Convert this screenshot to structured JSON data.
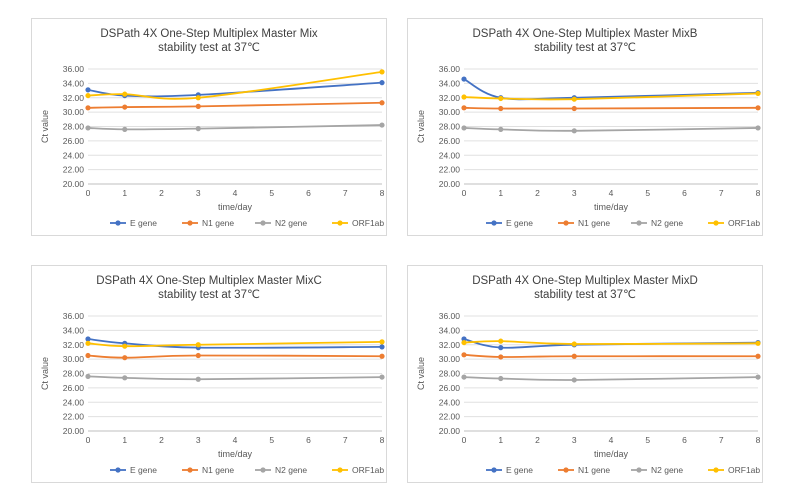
{
  "chart_data": [
    {
      "type": "line",
      "title": "DSPath 4X One-Step Multiplex Master Mix",
      "subtitle": "stability test at 37℃",
      "xlabel": "time/day",
      "ylabel": "Ct value",
      "x": [
        0,
        1,
        3,
        8
      ],
      "xlim": [
        0,
        8
      ],
      "xticks": [
        "0",
        "1",
        "2",
        "3",
        "4",
        "5",
        "6",
        "7",
        "8"
      ],
      "ylim": [
        20,
        36
      ],
      "yticks": [
        "20.00",
        "22.00",
        "24.00",
        "26.00",
        "28.00",
        "30.00",
        "32.00",
        "34.00",
        "36.00"
      ],
      "grid": true,
      "legend": "bottom",
      "series": [
        {
          "name": "E gene",
          "color": "#4472c4",
          "values": [
            33.1,
            32.3,
            32.4,
            34.1
          ]
        },
        {
          "name": "N1 gene",
          "color": "#ed7d31",
          "values": [
            30.6,
            30.7,
            30.8,
            31.3
          ]
        },
        {
          "name": "N2 gene",
          "color": "#a5a5a5",
          "values": [
            27.8,
            27.6,
            27.7,
            28.2
          ]
        },
        {
          "name": "ORF1ab",
          "color": "#ffc000",
          "values": [
            32.3,
            32.5,
            32.0,
            35.6
          ]
        }
      ]
    },
    {
      "type": "line",
      "title": "DSPath 4X One-Step Multiplex Master MixB",
      "subtitle": "stability test at 37℃",
      "xlabel": "time/day",
      "ylabel": "Ct value",
      "x": [
        0,
        1,
        3,
        8
      ],
      "xlim": [
        0,
        8
      ],
      "xticks": [
        "0",
        "1",
        "2",
        "3",
        "4",
        "5",
        "6",
        "7",
        "8"
      ],
      "ylim": [
        20,
        36
      ],
      "yticks": [
        "20.00",
        "22.00",
        "24.00",
        "26.00",
        "28.00",
        "30.00",
        "32.00",
        "34.00",
        "36.00"
      ],
      "grid": true,
      "legend": "bottom",
      "series": [
        {
          "name": "E gene",
          "color": "#4472c4",
          "values": [
            34.6,
            32.0,
            32.0,
            32.7
          ]
        },
        {
          "name": "N1 gene",
          "color": "#ed7d31",
          "values": [
            30.6,
            30.5,
            30.5,
            30.6
          ]
        },
        {
          "name": "N2 gene",
          "color": "#a5a5a5",
          "values": [
            27.8,
            27.6,
            27.4,
            27.8
          ]
        },
        {
          "name": "ORF1ab",
          "color": "#ffc000",
          "values": [
            32.1,
            31.9,
            31.8,
            32.6
          ]
        }
      ]
    },
    {
      "type": "line",
      "title": "DSPath 4X One-Step Multiplex Master MixC",
      "subtitle": "stability test at 37℃",
      "xlabel": "time/day",
      "ylabel": "Ct value",
      "x": [
        0,
        1,
        3,
        8
      ],
      "xlim": [
        0,
        8
      ],
      "xticks": [
        "0",
        "1",
        "2",
        "3",
        "4",
        "5",
        "6",
        "7",
        "8"
      ],
      "ylim": [
        20,
        36
      ],
      "yticks": [
        "20.00",
        "22.00",
        "24.00",
        "26.00",
        "28.00",
        "30.00",
        "32.00",
        "34.00",
        "36.00"
      ],
      "grid": true,
      "legend": "bottom",
      "series": [
        {
          "name": "E gene",
          "color": "#4472c4",
          "values": [
            32.8,
            32.2,
            31.6,
            31.7
          ]
        },
        {
          "name": "N1 gene",
          "color": "#ed7d31",
          "values": [
            30.5,
            30.2,
            30.5,
            30.4
          ]
        },
        {
          "name": "N2 gene",
          "color": "#a5a5a5",
          "values": [
            27.6,
            27.4,
            27.2,
            27.5
          ]
        },
        {
          "name": "ORF1ab",
          "color": "#ffc000",
          "values": [
            32.2,
            31.8,
            32.0,
            32.4
          ]
        }
      ]
    },
    {
      "type": "line",
      "title": "DSPath 4X One-Step Multiplex Master MixD",
      "subtitle": "stability test at 37℃",
      "xlabel": "time/day",
      "ylabel": "Ct value",
      "x": [
        0,
        1,
        3,
        8
      ],
      "xlim": [
        0,
        8
      ],
      "xticks": [
        "0",
        "1",
        "2",
        "3",
        "4",
        "5",
        "6",
        "7",
        "8"
      ],
      "ylim": [
        20,
        36
      ],
      "yticks": [
        "20.00",
        "22.00",
        "24.00",
        "26.00",
        "28.00",
        "30.00",
        "32.00",
        "34.00",
        "36.00"
      ],
      "grid": true,
      "legend": "bottom",
      "series": [
        {
          "name": "E gene",
          "color": "#4472c4",
          "values": [
            32.8,
            31.6,
            32.0,
            32.3
          ]
        },
        {
          "name": "N1 gene",
          "color": "#ed7d31",
          "values": [
            30.6,
            30.3,
            30.4,
            30.4
          ]
        },
        {
          "name": "N2 gene",
          "color": "#a5a5a5",
          "values": [
            27.5,
            27.3,
            27.1,
            27.5
          ]
        },
        {
          "name": "ORF1ab",
          "color": "#ffc000",
          "values": [
            32.3,
            32.5,
            32.1,
            32.2
          ]
        }
      ]
    }
  ]
}
